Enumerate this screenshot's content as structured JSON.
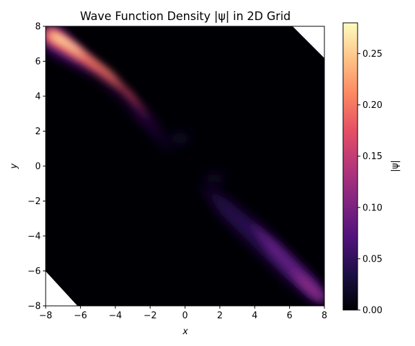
{
  "chart_data": {
    "type": "heatmap",
    "title": "Wave Function Density |ψ| in 2D Grid",
    "xlabel": "x",
    "ylabel": "y",
    "xlim": [
      -8,
      8
    ],
    "ylim": [
      -8,
      8
    ],
    "x_ticks": [
      "−8",
      "−6",
      "−4",
      "−2",
      "0",
      "2",
      "4",
      "6",
      "8"
    ],
    "y_ticks": [
      "−8",
      "−6",
      "−4",
      "−2",
      "0",
      "2",
      "4",
      "6",
      "8"
    ],
    "x_tick_values": [
      -8,
      -6,
      -4,
      -2,
      0,
      2,
      4,
      6,
      8
    ],
    "y_tick_values": [
      -8,
      -6,
      -4,
      -2,
      0,
      2,
      4,
      6,
      8
    ],
    "colormap": "magma",
    "grid": false,
    "colorbar": {
      "label": "|ψ|",
      "range": [
        0,
        0.28
      ],
      "ticks": [
        "0.00",
        "0.05",
        "0.10",
        "0.15",
        "0.20",
        "0.25"
      ],
      "tick_values": [
        0,
        0.05,
        0.1,
        0.15,
        0.2,
        0.25
      ]
    },
    "features": [
      {
        "center": [
          -6.8,
          6.9
        ],
        "direction": [
          -1,
          1
        ],
        "peak": 0.28
      },
      {
        "center": [
          7.5,
          -7.6
        ],
        "direction": [
          -1,
          1
        ],
        "peak": 0.1
      }
    ],
    "undefined_regions": [
      "top-right corner",
      "bottom-left corner"
    ]
  }
}
